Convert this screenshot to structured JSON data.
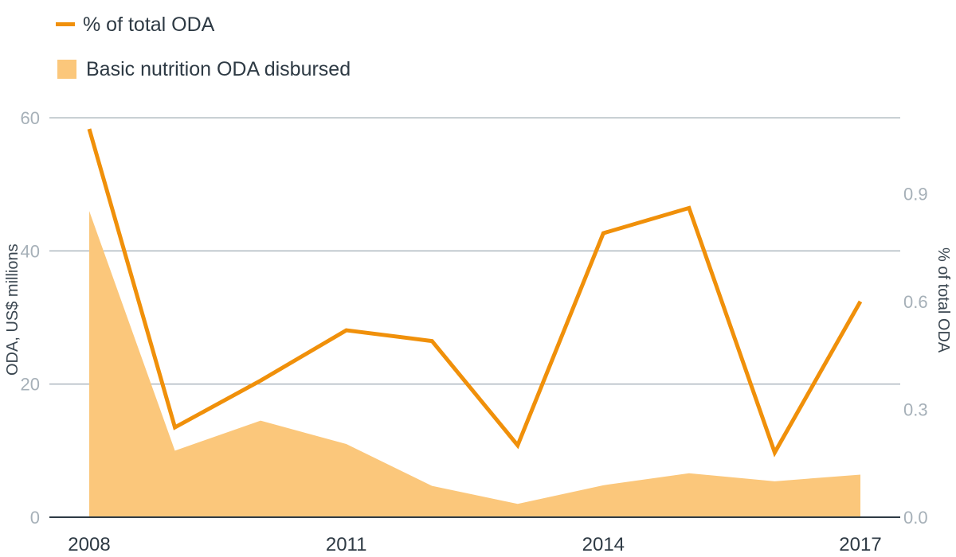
{
  "chart_data": {
    "type": "line",
    "x": [
      2008,
      2009,
      2010,
      2011,
      2012,
      2013,
      2014,
      2015,
      2016,
      2017
    ],
    "x_tick_labels": [
      "2008",
      "2011",
      "2014",
      "2017"
    ],
    "x_tick_values": [
      2008,
      2011,
      2014,
      2017
    ],
    "series": [
      {
        "name": "% of total ODA",
        "kind": "line",
        "axis": "right",
        "color": "#f0900a",
        "values": [
          1.08,
          0.25,
          0.38,
          0.52,
          0.49,
          0.2,
          0.79,
          0.86,
          0.18,
          0.6
        ]
      },
      {
        "name": "Basic nutrition ODA disbursed",
        "kind": "area",
        "axis": "left",
        "color": "#fbc77b",
        "values": [
          46,
          10,
          14.5,
          11,
          4.7,
          2,
          4.8,
          6.6,
          5.4,
          6.4
        ]
      }
    ],
    "y_left": {
      "label": "ODA, US$ millions",
      "range": [
        0,
        60
      ],
      "ticks": [
        0,
        20,
        40,
        60
      ],
      "tick_labels": [
        "0",
        "20",
        "40",
        "60"
      ]
    },
    "y_right": {
      "label": "% of total ODA",
      "range": [
        0,
        1.111
      ],
      "ticks": [
        0,
        0.3,
        0.6,
        0.9
      ],
      "tick_labels": [
        "0.0",
        "0.3",
        "0.6",
        "0.9"
      ]
    },
    "grid": true,
    "legend": "top-left"
  }
}
